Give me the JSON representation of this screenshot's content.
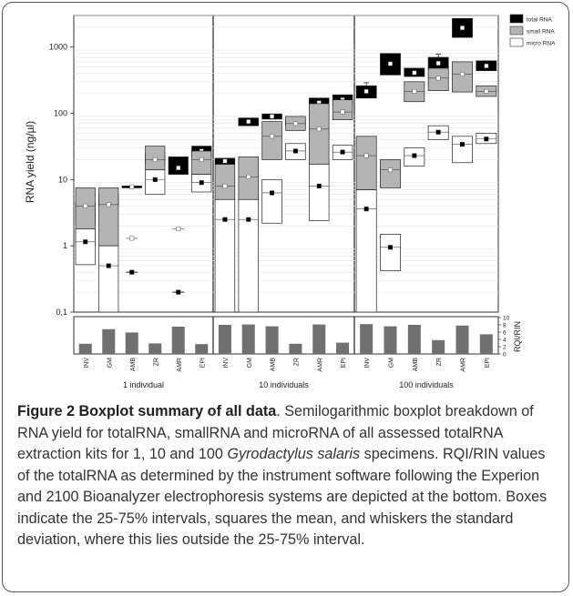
{
  "chart_data": {
    "type": "boxplot",
    "ylabel": "RNA yield (ng/µl)",
    "y_scale": "log",
    "ylim": [
      0.1,
      3000
    ],
    "y_ticks": [
      "0,1",
      "1",
      "10",
      "100",
      "1000"
    ],
    "panels": [
      {
        "label": "1 individual",
        "categories": [
          "INV",
          "GM",
          "AMB",
          "ZR",
          "AMR",
          "EPI"
        ]
      },
      {
        "label": "10 individuals",
        "categories": [
          "INV",
          "GM",
          "AMB",
          "ZR",
          "AMR",
          "EPI"
        ]
      },
      {
        "label": "100 individuals",
        "categories": [
          "INV",
          "GM",
          "AMB",
          "ZR",
          "AMR",
          "EPI"
        ]
      }
    ],
    "legend": {
      "position": "top-right",
      "items": [
        {
          "name": "total RNA",
          "color": "#000000"
        },
        {
          "name": "small RNA",
          "color": "#b4b4b4"
        },
        {
          "name": "micro RNA",
          "color": "#ffffff"
        }
      ]
    },
    "series": [
      {
        "name": "total RNA",
        "boxes": [
          {
            "q1": 2.1,
            "q3": 4.5,
            "mean": 2.8,
            "whisker_low": 1.7
          },
          {
            "q1": 4.0,
            "q3": 6.0,
            "mean": 5.0
          },
          {
            "q1": 7.5,
            "q3": 8.0,
            "mean": 7.8
          },
          {
            "q1": 17.0,
            "q3": 24.0,
            "mean": 21.0
          },
          {
            "q1": 12.0,
            "q3": 22.0,
            "mean": 15.0
          },
          {
            "q1": 22.0,
            "q3": 32.0,
            "mean": 27.0
          },
          {
            "q1": 17.0,
            "q3": 21.0,
            "mean": 19.0
          },
          {
            "q1": 65.0,
            "q3": 85.0,
            "mean": 75.0
          },
          {
            "q1": 82.0,
            "q3": 98.0,
            "mean": 90.0
          },
          {
            "q1": 66.0,
            "q3": 80.0,
            "mean": 72.0
          },
          {
            "q1": 120.0,
            "q3": 170.0,
            "mean": 145.0
          },
          {
            "q1": 130.0,
            "q3": 190.0,
            "mean": 160.0
          },
          {
            "q1": 170.0,
            "q3": 260.0,
            "mean": 215.0,
            "whisker_high": 290
          },
          {
            "q1": 380.0,
            "q3": 800.0,
            "mean": 560.0
          },
          {
            "q1": 360.0,
            "q3": 480.0,
            "mean": 410.0
          },
          {
            "q1": 460.0,
            "q3": 700.0,
            "mean": 570.0,
            "whisker_high": 780
          },
          {
            "q1": 1400.0,
            "q3": 2700.0,
            "mean": 1950.0
          },
          {
            "q1": 440.0,
            "q3": 620.0,
            "mean": 520.0
          }
        ]
      },
      {
        "name": "small RNA",
        "boxes": [
          {
            "q1": 1.0,
            "q3": 7.5,
            "mean": 4.0
          },
          {
            "q1": 1.0,
            "q3": 7.5,
            "mean": 4.2
          },
          {
            "q1": 1.3,
            "q3": 1.3,
            "mean": 1.3
          },
          {
            "q1": 14.0,
            "q3": 32.0,
            "mean": 20.0
          },
          {
            "q1": 1.8,
            "q3": 1.8,
            "mean": 1.8
          },
          {
            "q1": 12.0,
            "q3": 27.0,
            "mean": 20.0
          },
          {
            "q1": 5.0,
            "q3": 17.0,
            "mean": 8.0
          },
          {
            "q1": 5.0,
            "q3": 22.0,
            "mean": 11.0
          },
          {
            "q1": 20.0,
            "q3": 75.0,
            "mean": 45.0
          },
          {
            "q1": 55.0,
            "q3": 90.0,
            "mean": 70.0
          },
          {
            "q1": 10.0,
            "q3": 140.0,
            "mean": 58.0
          },
          {
            "q1": 80.0,
            "q3": 160.0,
            "mean": 105.0
          },
          {
            "q1": 7.0,
            "q3": 45.0,
            "mean": 23.0
          },
          {
            "q1": 7.5,
            "q3": 20.0,
            "mean": 14.0
          },
          {
            "q1": 150.0,
            "q3": 300.0,
            "mean": 215.0
          },
          {
            "q1": 220.0,
            "q3": 480.0,
            "mean": 340.0
          },
          {
            "q1": 210.0,
            "q3": 600.0,
            "mean": 390.0
          },
          {
            "q1": 180.0,
            "q3": 260.0,
            "mean": 215.0
          }
        ]
      },
      {
        "name": "micro RNA",
        "boxes": [
          {
            "q1": 0.52,
            "q3": 1.8,
            "mean": 1.15
          },
          {
            "q1": 0.1,
            "q3": 1.0,
            "mean": 0.5
          },
          {
            "q1": 0.4,
            "q3": 0.4,
            "mean": 0.4
          },
          {
            "q1": 6.0,
            "q3": 14.0,
            "mean": 10.0
          },
          {
            "q1": 0.2,
            "q3": 0.2,
            "mean": 0.2
          },
          {
            "q1": 6.5,
            "q3": 12.0,
            "mean": 9.0
          },
          {
            "q1": 0.1,
            "q3": 5.0,
            "mean": 2.5
          },
          {
            "q1": 0.1,
            "q3": 5.0,
            "mean": 2.5
          },
          {
            "q1": 2.2,
            "q3": 10.0,
            "mean": 6.3
          },
          {
            "q1": 20.0,
            "q3": 35.0,
            "mean": 27.0
          },
          {
            "q1": 2.4,
            "q3": 17.0,
            "mean": 8.0
          },
          {
            "q1": 20.0,
            "q3": 33.0,
            "mean": 26.0
          },
          {
            "q1": 0.1,
            "q3": 7.0,
            "mean": 3.6
          },
          {
            "q1": 0.42,
            "q3": 1.5,
            "mean": 0.95
          },
          {
            "q1": 16.0,
            "q3": 30.0,
            "mean": 23.0
          },
          {
            "q1": 40.0,
            "q3": 65.0,
            "mean": 52.0
          },
          {
            "q1": 18.0,
            "q3": 45.0,
            "mean": 34.0
          },
          {
            "q1": 35.0,
            "q3": 50.0,
            "mean": 41.0
          }
        ]
      }
    ],
    "rin_panel": {
      "ylabel": "RQI/RIN",
      "y_ticks": [
        "0",
        "2",
        "4",
        "6",
        "8",
        "10"
      ],
      "ylim": [
        0,
        10
      ],
      "values": [
        2.8,
        6.8,
        5.9,
        2.9,
        7.5,
        2.7,
        8.0,
        8.1,
        7.6,
        2.8,
        8.1,
        3.1,
        8.2,
        7.6,
        8.0,
        3.8,
        7.8,
        5.4
      ]
    }
  },
  "caption": {
    "title": "Figure 2 Boxplot summary of all data",
    "text_1": ". Semilogarithmic boxplot breakdown of RNA yield for totalRNA, smallRNA and microRNA of all assessed totalRNA extraction kits for 1, 10 and 100 ",
    "species": "Gyrodactylus salaris",
    "text_2": " specimens. RQI/RIN values of the totalRNA as determined by the instrument software following the Experion and 2100 Bioanalyzer electrophoresis systems are depicted at the bottom. Boxes indicate the 25-75% intervals, squares the mean, and whiskers the standard deviation, where this lies outside the 25-75% interval."
  }
}
